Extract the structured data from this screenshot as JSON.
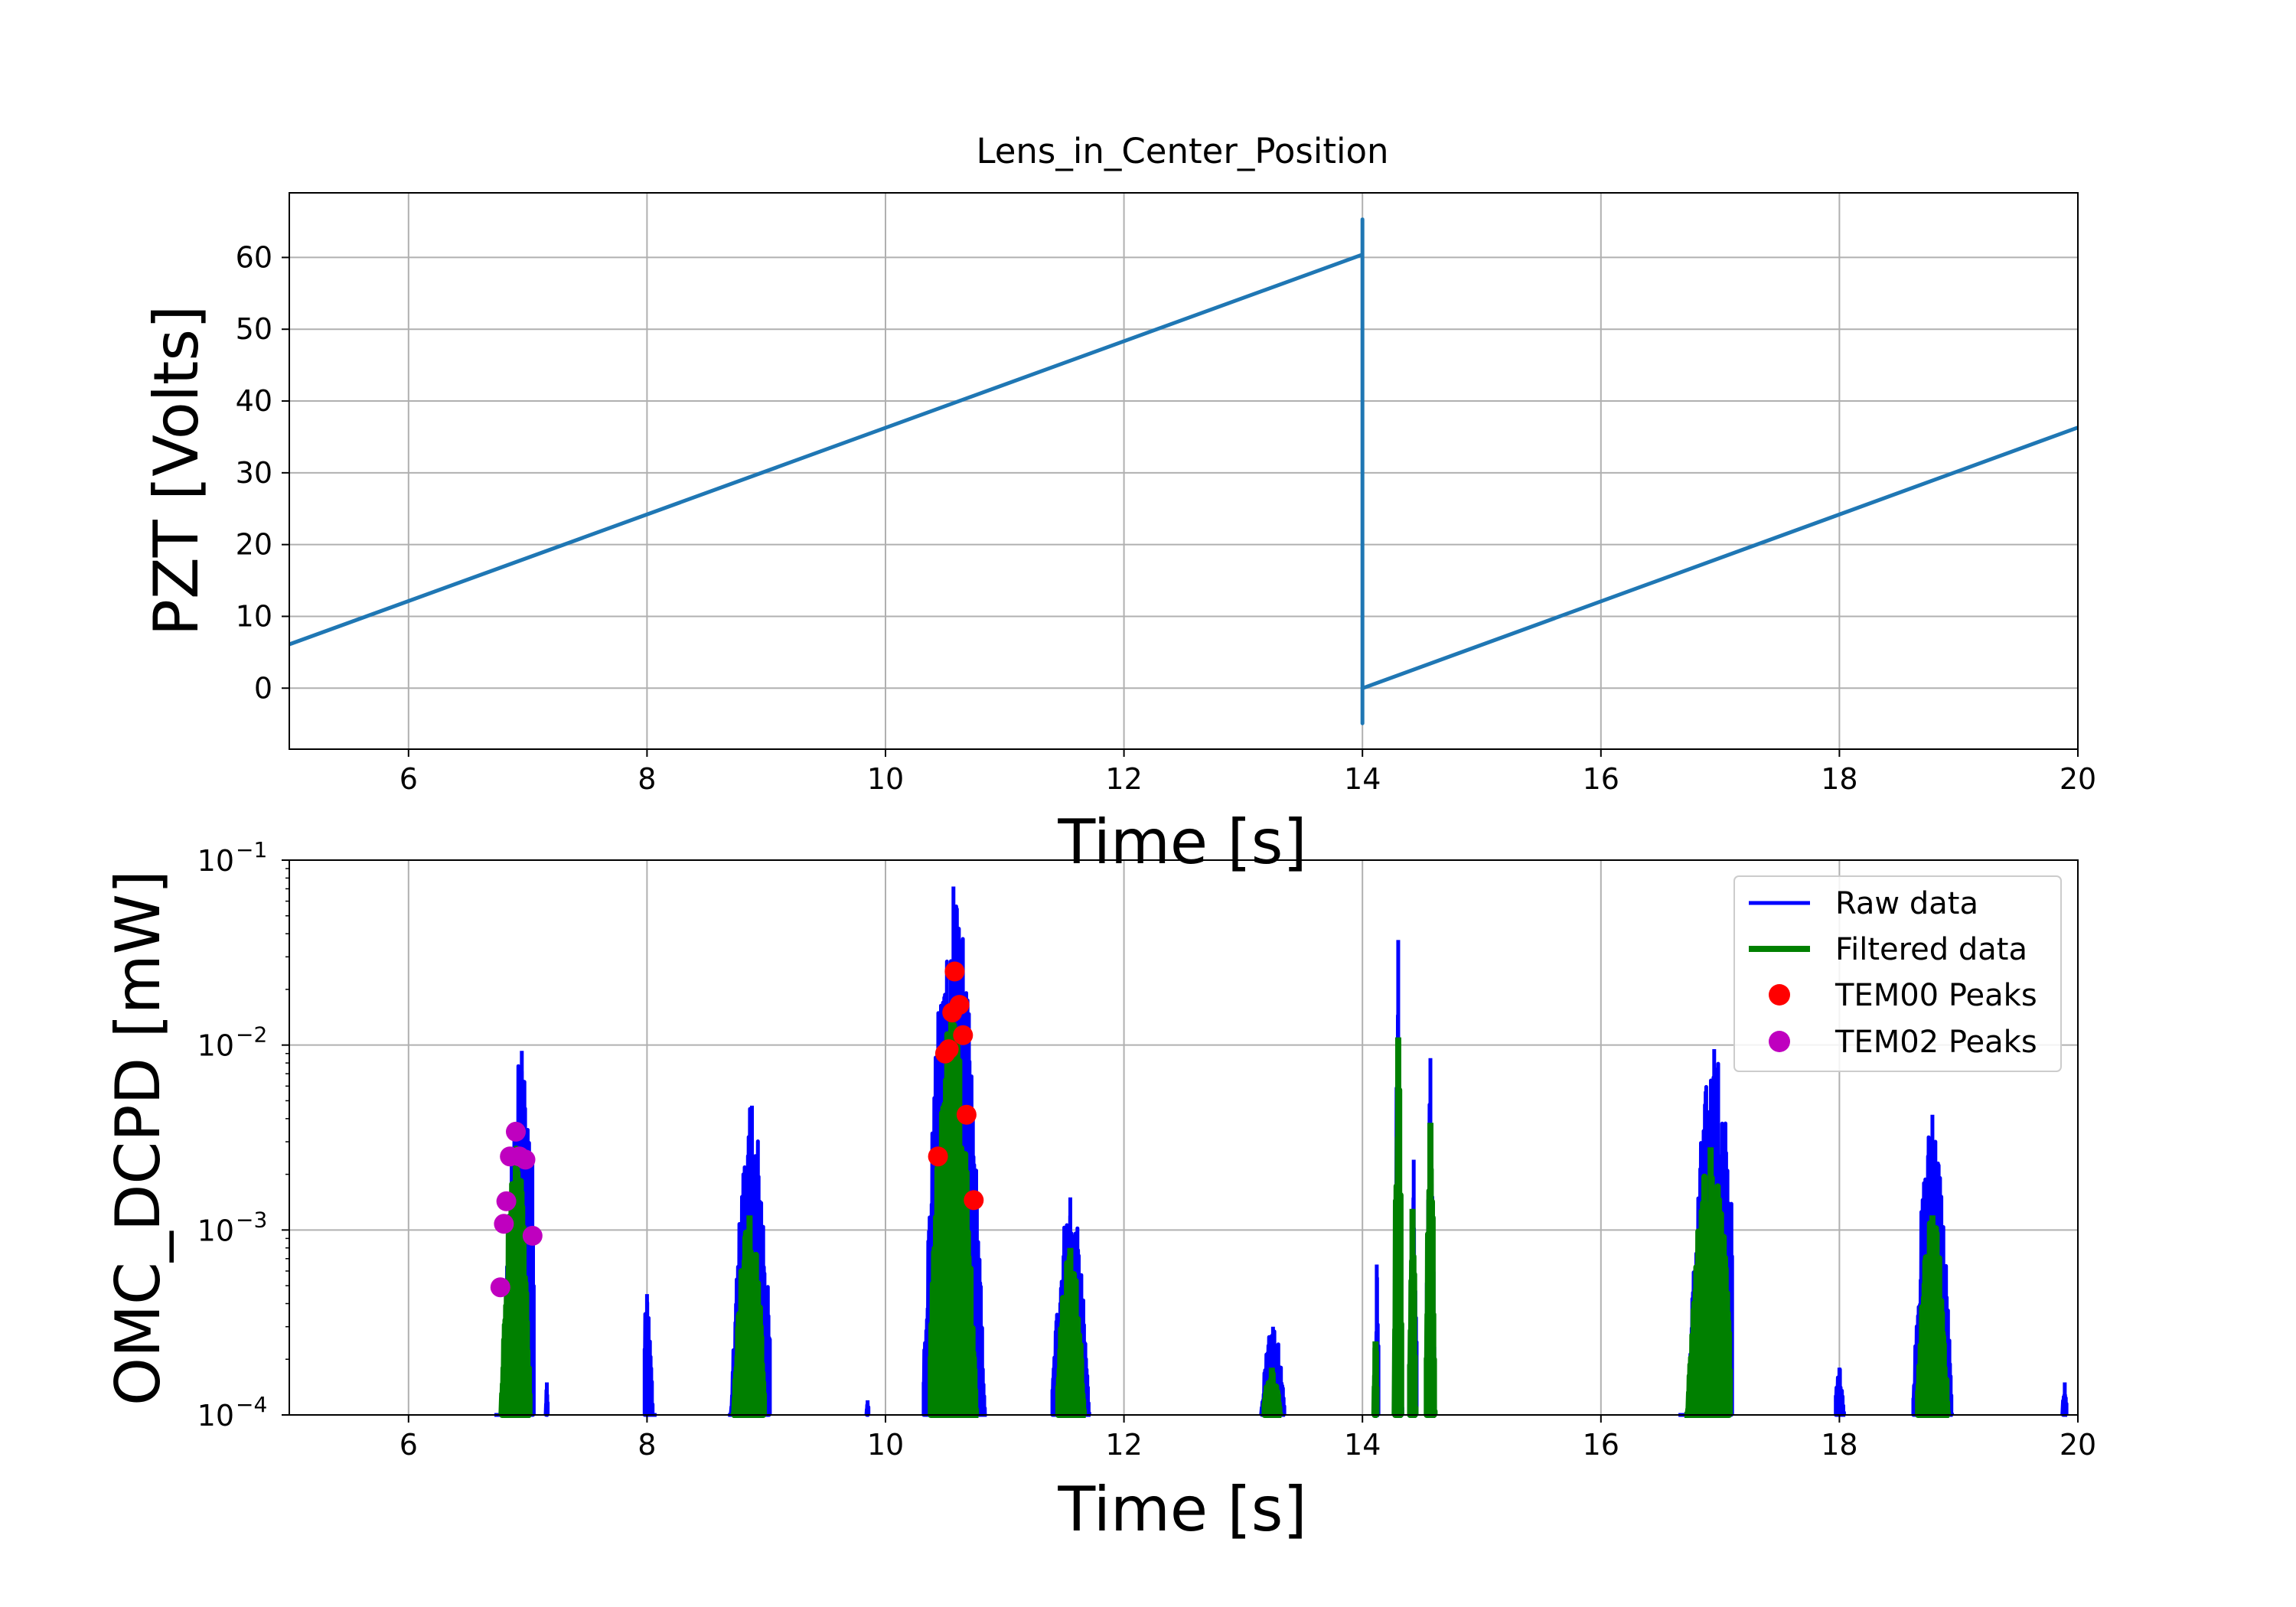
{
  "chart_data": [
    {
      "type": "line",
      "title": "Lens_in_Center_Position",
      "xlabel": "Time [s]",
      "ylabel": "PZT [Volts]",
      "xlim": [
        5,
        20
      ],
      "ylim": [
        -8.5,
        69
      ],
      "xticks": [
        6,
        8,
        10,
        12,
        14,
        16,
        18,
        20
      ],
      "yticks": [
        0,
        10,
        20,
        30,
        40,
        50,
        60
      ],
      "grid": true,
      "color": "#1f77b4",
      "series": [
        {
          "x": [
            5,
            14,
            14,
            14,
            14,
            14.02,
            20
          ],
          "y": [
            6.1,
            60.4,
            65.3,
            -4.9,
            0,
            0.1,
            36.3
          ]
        }
      ]
    },
    {
      "type": "line",
      "xlabel": "Time [s]",
      "ylabel": "OMC_DCPD [mW]",
      "xlim": [
        5,
        20
      ],
      "ylim": [
        0.0001,
        0.1
      ],
      "yscale": "log",
      "xticks": [
        6,
        8,
        10,
        12,
        14,
        16,
        18,
        20
      ],
      "yticks": [
        {
          "base": "10",
          "exp": "−4",
          "value": 0.0001
        },
        {
          "base": "10",
          "exp": "−3",
          "value": 0.001
        },
        {
          "base": "10",
          "exp": "−2",
          "value": 0.01
        },
        {
          "base": "10",
          "exp": "−1",
          "value": 0.1
        }
      ],
      "grid": true,
      "legend_position": "top-right",
      "series": [
        {
          "name": "Raw data",
          "kind": "line",
          "color": "#0000ff",
          "bursts": [
            {
              "start": 6.72,
              "end": 7.05,
              "peak_t": 6.95,
              "peak": 0.0093
            },
            {
              "start": 7.15,
              "end": 7.17,
              "peak_t": 7.16,
              "peak": 0.00015
            },
            {
              "start": 7.98,
              "end": 8.08,
              "peak_t": 8.0,
              "peak": 0.00045
            },
            {
              "start": 8.68,
              "end": 9.03,
              "peak_t": 8.88,
              "peak": 0.0047
            },
            {
              "start": 9.84,
              "end": 9.86,
              "peak_t": 9.85,
              "peak": 0.00012
            },
            {
              "start": 10.32,
              "end": 10.85,
              "peak_t": 10.57,
              "peak": 0.072
            },
            {
              "start": 11.4,
              "end": 11.72,
              "peak_t": 11.55,
              "peak": 0.0015
            },
            {
              "start": 13.15,
              "end": 13.35,
              "peak_t": 13.25,
              "peak": 0.0003
            },
            {
              "start": 14.1,
              "end": 14.14,
              "peak_t": 14.12,
              "peak": 0.00065
            },
            {
              "start": 14.27,
              "end": 14.34,
              "peak_t": 14.3,
              "peak": 0.037
            },
            {
              "start": 14.4,
              "end": 14.46,
              "peak_t": 14.43,
              "peak": 0.0024
            },
            {
              "start": 14.54,
              "end": 14.62,
              "peak_t": 14.57,
              "peak": 0.0085
            },
            {
              "start": 16.65,
              "end": 17.1,
              "peak_t": 16.95,
              "peak": 0.0095
            },
            {
              "start": 17.97,
              "end": 18.05,
              "peak_t": 18.0,
              "peak": 0.00018
            },
            {
              "start": 18.62,
              "end": 18.95,
              "peak_t": 18.78,
              "peak": 0.0042
            },
            {
              "start": 19.87,
              "end": 19.91,
              "peak_t": 19.89,
              "peak": 0.00015
            }
          ]
        },
        {
          "name": "Filtered data",
          "kind": "line",
          "color": "#008000",
          "bursts": [
            {
              "start": 6.78,
              "end": 7.02,
              "peak_t": 6.9,
              "peak": 0.0028
            },
            {
              "start": 8.72,
              "end": 8.98,
              "peak_t": 8.86,
              "peak": 0.0012
            },
            {
              "start": 10.38,
              "end": 10.78,
              "peak_t": 10.56,
              "peak": 0.016
            },
            {
              "start": 11.45,
              "end": 11.68,
              "peak_t": 11.55,
              "peak": 0.0008
            },
            {
              "start": 13.18,
              "end": 13.32,
              "peak_t": 13.24,
              "peak": 0.00018
            },
            {
              "start": 14.1,
              "end": 14.12,
              "peak_t": 14.11,
              "peak": 0.00025
            },
            {
              "start": 14.27,
              "end": 14.33,
              "peak_t": 14.3,
              "peak": 0.011
            },
            {
              "start": 14.4,
              "end": 14.45,
              "peak_t": 14.42,
              "peak": 0.0013
            },
            {
              "start": 14.54,
              "end": 14.61,
              "peak_t": 14.57,
              "peak": 0.0038
            },
            {
              "start": 16.7,
              "end": 17.08,
              "peak_t": 16.92,
              "peak": 0.0028
            },
            {
              "start": 18.66,
              "end": 18.92,
              "peak_t": 18.78,
              "peak": 0.0012
            }
          ]
        },
        {
          "name": "TEM00 Peaks",
          "kind": "points",
          "color": "#ff0000",
          "x": [
            10.44,
            10.5,
            10.53,
            10.56,
            10.58,
            10.62,
            10.65,
            10.68,
            10.74
          ],
          "y": [
            0.0025,
            0.009,
            0.0095,
            0.015,
            0.025,
            0.0165,
            0.0113,
            0.0042,
            0.00145
          ]
        },
        {
          "name": "TEM02 Peaks",
          "kind": "points",
          "color": "#bf00bf",
          "x": [
            6.77,
            6.8,
            6.82,
            6.85,
            6.9,
            6.93,
            6.98,
            7.04
          ],
          "y": [
            0.00049,
            0.00108,
            0.00143,
            0.0025,
            0.0034,
            0.0025,
            0.0024,
            0.00093
          ]
        }
      ]
    }
  ]
}
